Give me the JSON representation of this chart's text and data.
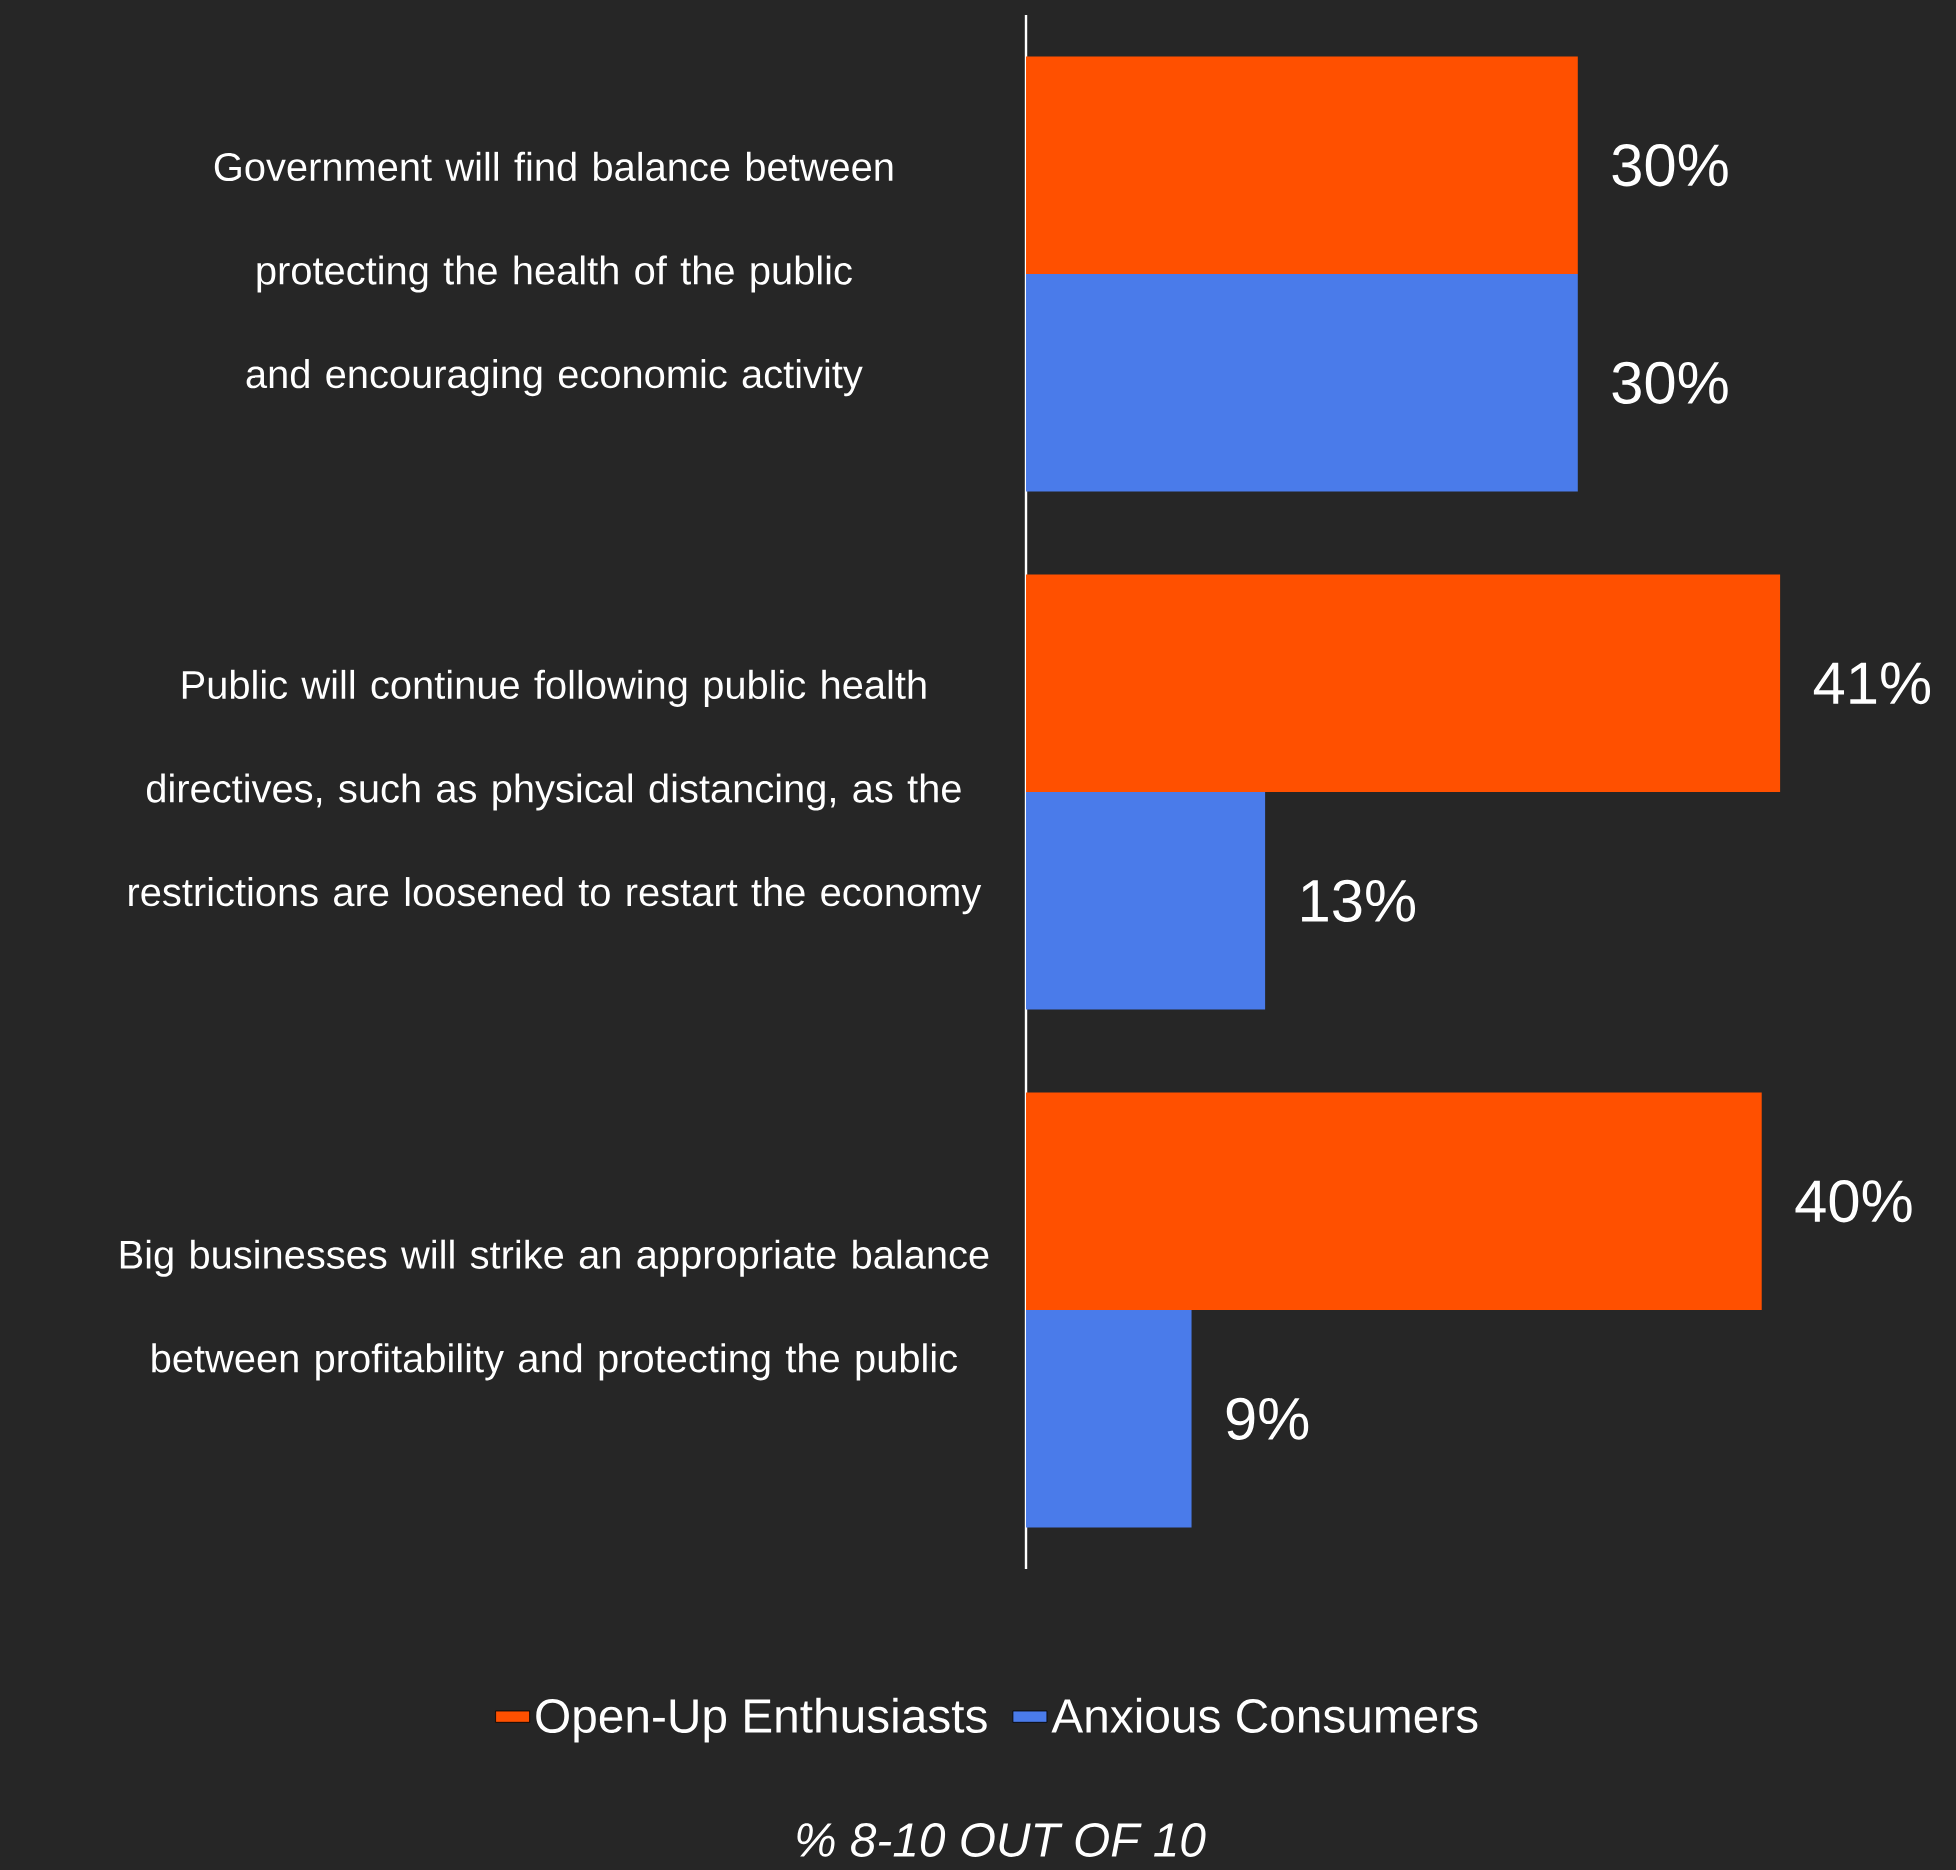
{
  "chart_data": {
    "type": "bar",
    "orientation": "horizontal",
    "categories": [
      "Government will find balance between protecting the health of the public and encouraging economic activity",
      "Public will continue following public health directives, such as physical distancing, as the restrictions are loosened to restart the economy",
      "Big businesses will strike an appropriate balance between profitability and protecting the public"
    ],
    "series": [
      {
        "name": "Open-Up Enthusiasts",
        "color": "#ff5000",
        "values": [
          30,
          41,
          40
        ],
        "value_labels": [
          "30%",
          "41%",
          "40%"
        ]
      },
      {
        "name": "Anxious Consumers",
        "color": "#4a7bea",
        "values": [
          30,
          13,
          9
        ],
        "value_labels": [
          "30%",
          "13%",
          "9%"
        ]
      }
    ],
    "legend": "bottom",
    "annotations": [
      "% 8-10 OUT OF 10"
    ]
  }
}
